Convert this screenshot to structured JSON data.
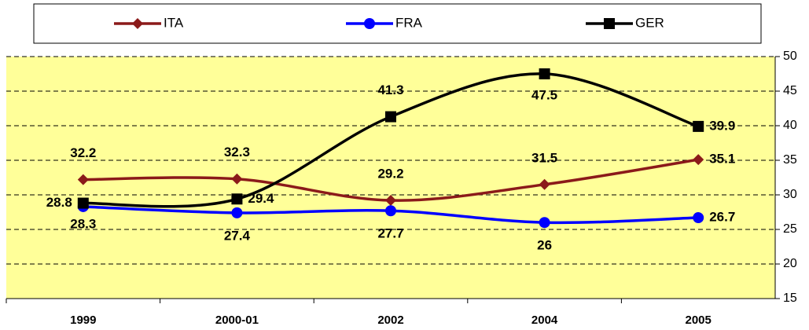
{
  "chart_data": {
    "type": "line",
    "categories": [
      "1999",
      "2000-01",
      "2002",
      "2004",
      "2005"
    ],
    "series": [
      {
        "name": "ITA",
        "color": "#8b1a1a",
        "marker": "diamond",
        "values": [
          32.2,
          32.3,
          29.2,
          31.5,
          35.1
        ]
      },
      {
        "name": "FRA",
        "color": "#0000ff",
        "marker": "circle",
        "values": [
          28.3,
          27.4,
          27.7,
          26,
          26.7
        ]
      },
      {
        "name": "GER",
        "color": "#000000",
        "marker": "square",
        "values": [
          28.8,
          29.4,
          41.3,
          47.5,
          39.9
        ]
      }
    ],
    "ylim": [
      15,
      50
    ],
    "yticks": [
      15,
      20,
      25,
      30,
      35,
      40,
      45,
      50
    ],
    "y_axis_side": "right",
    "grid": true,
    "legend": "top",
    "smooth": true,
    "plot_background": "#ffff99"
  }
}
